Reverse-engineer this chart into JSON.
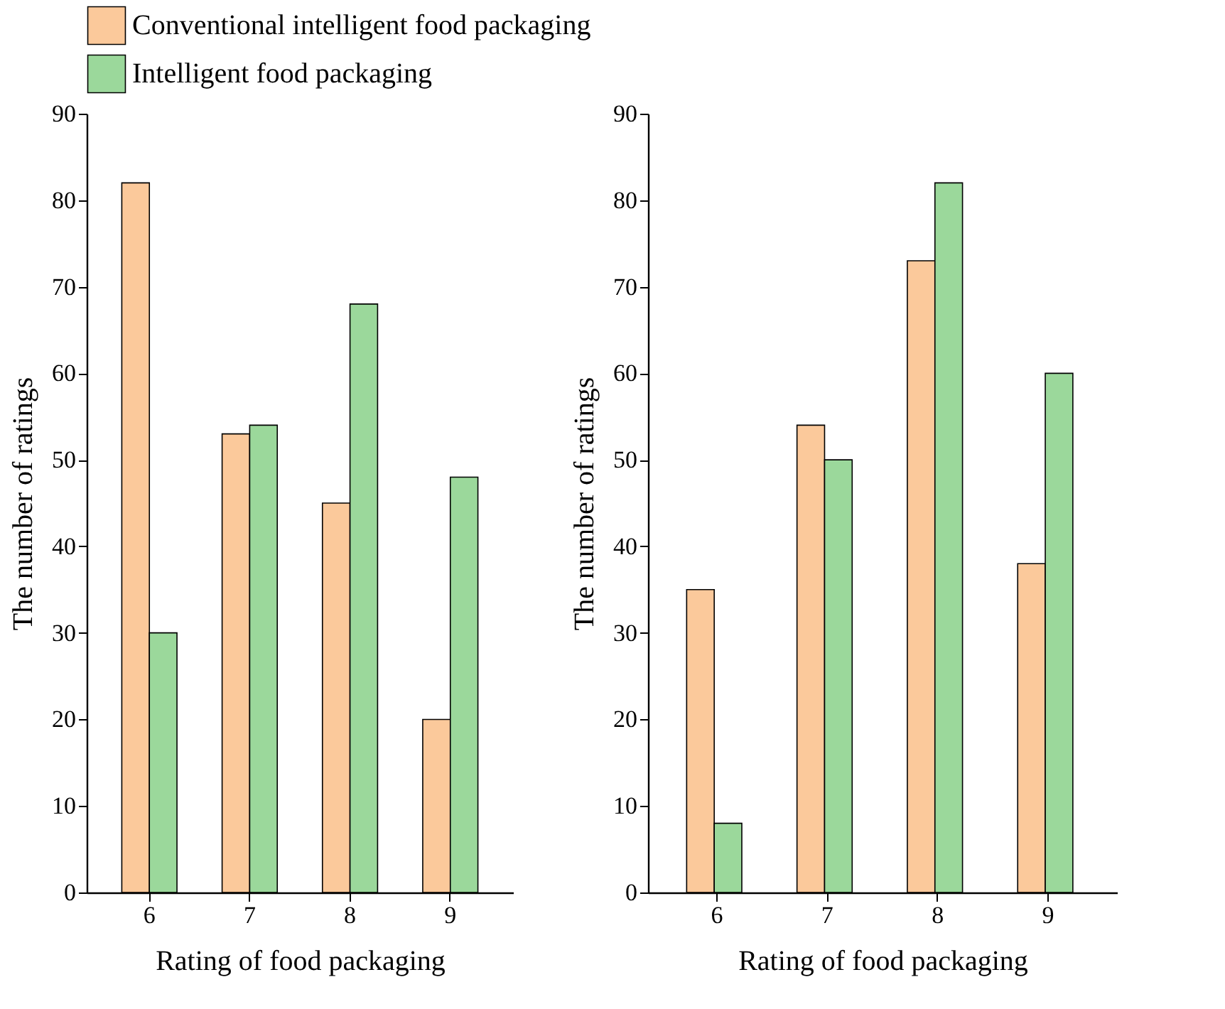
{
  "chart_data": [
    {
      "type": "bar",
      "xlabel": "Rating of food packaging",
      "ylabel": "The number of ratings",
      "categories": [
        "6",
        "7",
        "8",
        "9"
      ],
      "series": [
        {
          "name": "Conventional intelligent food packaging",
          "color": "#fbc99b",
          "values": [
            82,
            53,
            45,
            20
          ]
        },
        {
          "name": "Intelligent food packaging",
          "color": "#9bd89b",
          "values": [
            30,
            54,
            68,
            48
          ]
        }
      ],
      "ylim": [
        0,
        90
      ],
      "yticks": [
        0,
        10,
        20,
        30,
        40,
        50,
        60,
        70,
        80,
        90
      ],
      "grid": false,
      "legend": "top"
    },
    {
      "type": "bar",
      "xlabel": "Rating of food packaging",
      "ylabel": "The number of ratings",
      "categories": [
        "6",
        "7",
        "8",
        "9"
      ],
      "series": [
        {
          "name": "Conventional intelligent food packaging",
          "color": "#fbc99b",
          "values": [
            35,
            54,
            73,
            38
          ]
        },
        {
          "name": "Intelligent food packaging",
          "color": "#9bd89b",
          "values": [
            8,
            50,
            82,
            60
          ]
        }
      ],
      "ylim": [
        0,
        90
      ],
      "yticks": [
        0,
        10,
        20,
        30,
        40,
        50,
        60,
        70,
        80,
        90
      ],
      "grid": false,
      "legend": "top"
    }
  ]
}
